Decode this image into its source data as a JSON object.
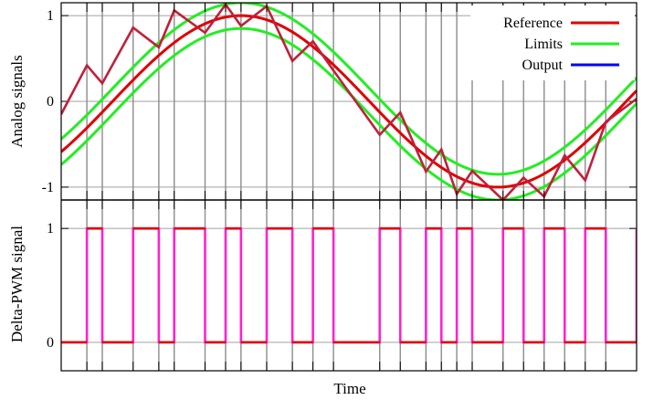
{
  "chart_data": [
    {
      "type": "line",
      "ylabel": "Analog signals",
      "xlabel": "",
      "ylim": [
        -1.15,
        1.15
      ],
      "yticks": [
        {
          "value": 1,
          "label": "1"
        },
        {
          "value": 0,
          "label": "0"
        },
        {
          "value": -1,
          "label": "-1"
        }
      ],
      "grid": true,
      "legend_position": "top-right",
      "series": [
        {
          "name": "Reference",
          "key": "reference",
          "color": "#e00000",
          "function": "sin(2*pi*t)",
          "x_range": [
            -0.1,
            1.02
          ]
        },
        {
          "name": "Limits",
          "key": "limits",
          "color": "#22ee22",
          "offset": 0.15
        },
        {
          "name": "Output",
          "key": "output",
          "color": "#0000ff",
          "display_color": "#c0203a",
          "x": [
            -0.1,
            -0.05,
            -0.02,
            0.04,
            0.09,
            0.12,
            0.18,
            0.22,
            0.25,
            0.3,
            0.35,
            0.39,
            0.43,
            0.52,
            0.56,
            0.61,
            0.64,
            0.67,
            0.7,
            0.76,
            0.8,
            0.84,
            0.88,
            0.92,
            0.96,
            1.02
          ],
          "y": [
            -0.15,
            0.42,
            0.21,
            0.86,
            0.63,
            1.06,
            0.8,
            1.13,
            0.88,
            1.11,
            0.47,
            0.7,
            0.36,
            -0.39,
            -0.13,
            -0.82,
            -0.56,
            -1.08,
            -0.81,
            -1.15,
            -0.89,
            -1.11,
            -0.63,
            -0.92,
            -0.24,
            0.03
          ]
        }
      ]
    },
    {
      "type": "line",
      "ylabel": "Delta-PWM signal",
      "xlabel": "Time",
      "ylim": [
        -0.25,
        1.25
      ],
      "yticks": [
        {
          "value": 1,
          "label": "1"
        },
        {
          "value": 0,
          "label": "0"
        }
      ],
      "series": [
        {
          "name": "",
          "key": "pwm",
          "color": "#ff22cc",
          "high_color": "#e00000",
          "x": [
            -0.1,
            -0.05,
            -0.02,
            0.04,
            0.09,
            0.12,
            0.18,
            0.22,
            0.25,
            0.3,
            0.35,
            0.39,
            0.43,
            0.52,
            0.56,
            0.61,
            0.64,
            0.67,
            0.7,
            0.76,
            0.8,
            0.84,
            0.88,
            0.92,
            0.96,
            1.02
          ],
          "y": [
            0,
            1,
            0,
            1,
            0,
            1,
            0,
            1,
            0,
            1,
            0,
            1,
            0,
            1,
            0,
            1,
            0,
            1,
            0,
            1,
            0,
            1,
            0,
            1,
            0,
            1
          ]
        }
      ]
    }
  ],
  "x_range": [
    -0.1,
    1.02
  ],
  "switch_times": [
    -0.05,
    -0.02,
    0.04,
    0.09,
    0.12,
    0.18,
    0.22,
    0.25,
    0.3,
    0.35,
    0.39,
    0.43,
    0.52,
    0.56,
    0.61,
    0.64,
    0.67,
    0.7,
    0.76,
    0.8,
    0.84,
    0.88,
    0.92,
    0.96
  ]
}
